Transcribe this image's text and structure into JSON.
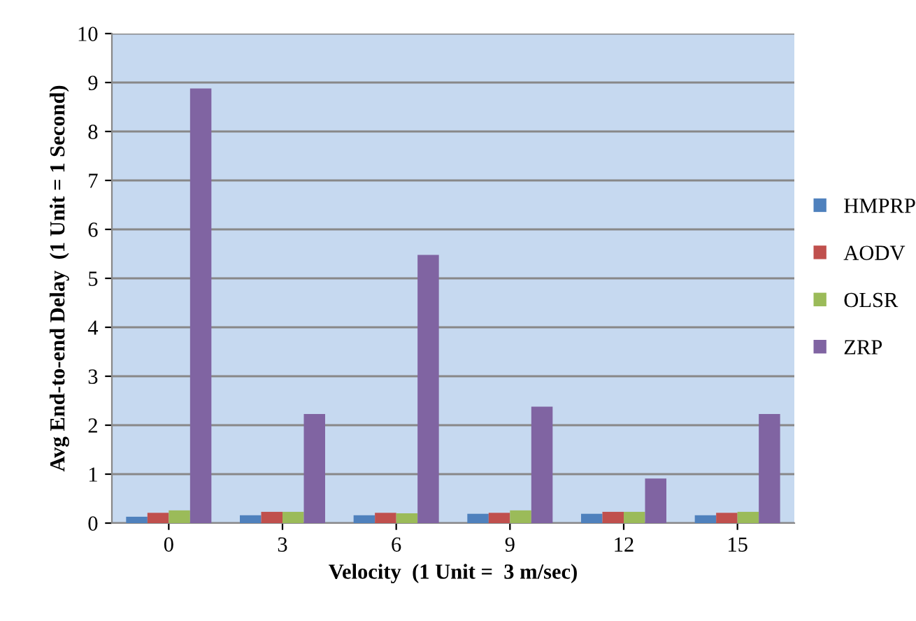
{
  "chart_data": {
    "type": "bar",
    "xlabel": "Velocity  (1 Unit =  3 m/sec)",
    "ylabel": "Avg End-to-end Delay  (1 Unit = 1 Second)",
    "categories": [
      "0",
      "3",
      "6",
      "9",
      "12",
      "15"
    ],
    "series": [
      {
        "name": "HMPRP",
        "color": "#4f81bd",
        "values": [
          0.13,
          0.16,
          0.16,
          0.19,
          0.19,
          0.16
        ]
      },
      {
        "name": "AODV",
        "color": "#c0504d",
        "values": [
          0.21,
          0.23,
          0.21,
          0.21,
          0.23,
          0.21
        ]
      },
      {
        "name": "OLSR",
        "color": "#9bbb59",
        "values": [
          0.26,
          0.23,
          0.2,
          0.26,
          0.23,
          0.23
        ]
      },
      {
        "name": "ZRP",
        "color": "#8064a2",
        "values": [
          8.88,
          2.23,
          5.48,
          2.38,
          0.91,
          2.23
        ]
      }
    ],
    "ylim": [
      0,
      10
    ],
    "yticks": [
      0,
      1,
      2,
      3,
      4,
      5,
      6,
      7,
      8,
      9,
      10
    ],
    "grid": "y",
    "legend": "right"
  }
}
